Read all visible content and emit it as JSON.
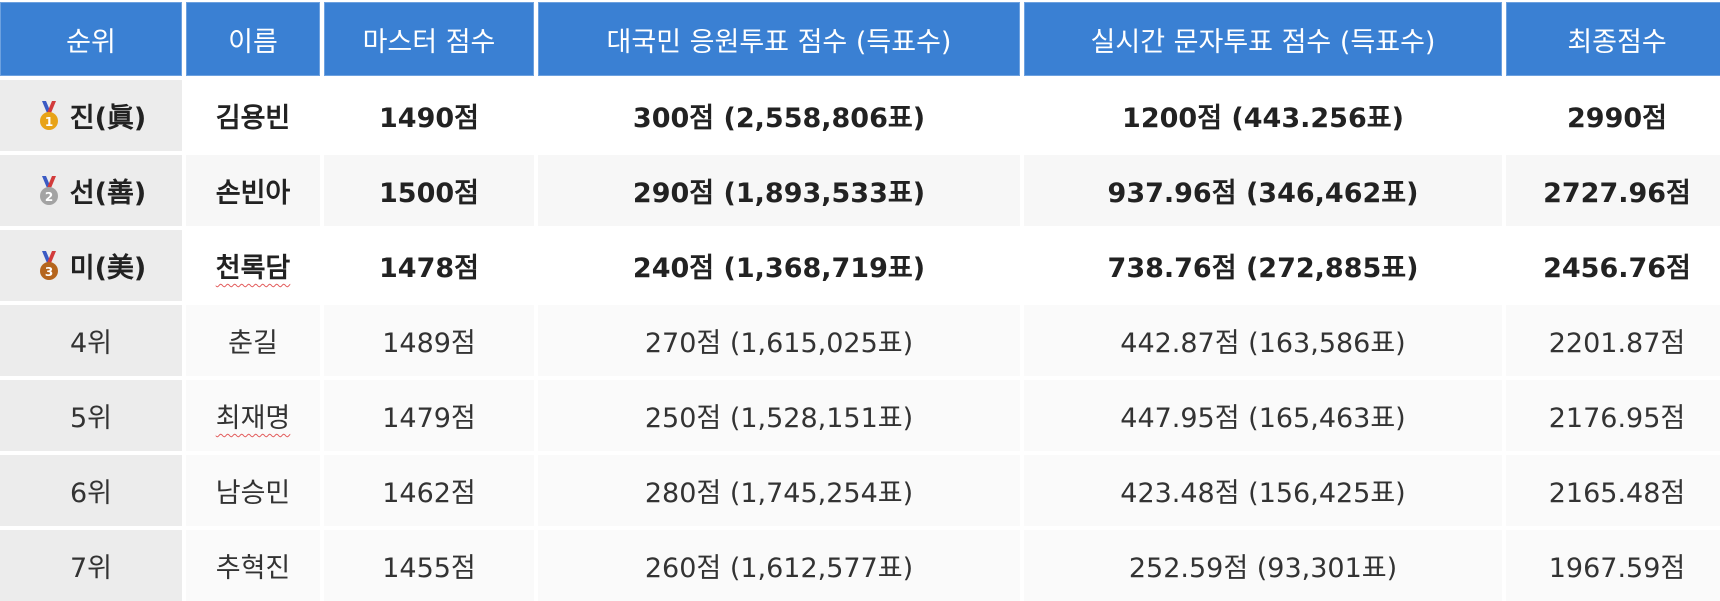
{
  "headers": [
    "순위",
    "이름",
    "마스터 점수",
    "대국민 응원투표 점수 (득표수)",
    "실시간 문자투표 점수 (득표수)",
    "최종점수"
  ],
  "rows": [
    {
      "rank": "진(眞)",
      "medal": "gold",
      "medal_num": "1",
      "name": "김용빈",
      "master": "1490점",
      "public_vote": "300점 (2,558,806표)",
      "live_vote": "1200점 (443.256표)",
      "final": "2990점"
    },
    {
      "rank": "선(善)",
      "medal": "silver",
      "medal_num": "2",
      "name": "손빈아",
      "master": "1500점",
      "public_vote": "290점 (1,893,533표)",
      "live_vote": "937.96점 (346,462표)",
      "final": "2727.96점"
    },
    {
      "rank": "미(美)",
      "medal": "bronze",
      "medal_num": "3",
      "name": "천록담",
      "master": "1478점",
      "public_vote": "240점 (1,368,719표)",
      "live_vote": "738.76점 (272,885표)",
      "final": "2456.76점"
    },
    {
      "rank": "4위",
      "name": "춘길",
      "master": "1489점",
      "public_vote": "270점 (1,615,025표)",
      "live_vote": "442.87점 (163,586표)",
      "final": "2201.87점"
    },
    {
      "rank": "5위",
      "name": "최재명",
      "master": "1479점",
      "public_vote": "250점 (1,528,151표)",
      "live_vote": "447.95점 (165,463표)",
      "final": "2176.95점"
    },
    {
      "rank": "6위",
      "name": "남승민",
      "master": "1462점",
      "public_vote": "280점 (1,745,254표)",
      "live_vote": "423.48점 (156,425표)",
      "final": "2165.48점"
    },
    {
      "rank": "7위",
      "name": "추혁진",
      "master": "1455점",
      "public_vote": "260점 (1,612,577표)",
      "live_vote": "252.59점 (93,301표)",
      "final": "1967.59점"
    }
  ],
  "colors": {
    "header_bg": "#3a80d3",
    "gold": "#e8a317",
    "silver": "#a3a3a3",
    "bronze": "#b5651d",
    "ribbon_blue": "#3b5bc4",
    "ribbon_red": "#d23b3b"
  }
}
